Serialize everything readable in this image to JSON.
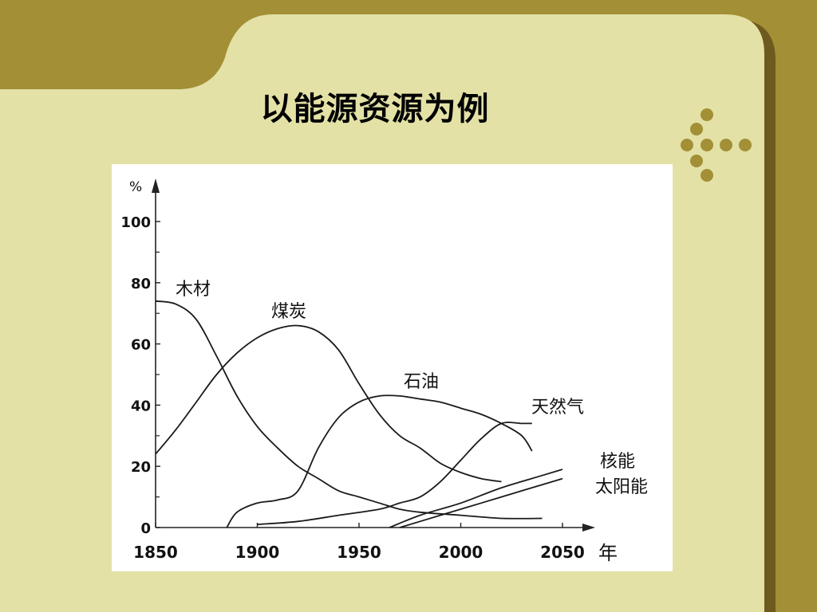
{
  "slide": {
    "title": "以能源资源为例",
    "colors": {
      "background": "#a38f35",
      "content": "#e3e1a6",
      "shadow": "#6e5a1e",
      "dots": "#a38f35"
    }
  },
  "chart_data": {
    "type": "line",
    "title": "",
    "xlabel": "年",
    "ylabel": "%",
    "xlim": [
      1850,
      2050
    ],
    "ylim": [
      0,
      100
    ],
    "x_ticks": [
      "1850",
      "1900",
      "1950",
      "2000",
      "2050"
    ],
    "y_ticks": [
      "0",
      "20",
      "40",
      "60",
      "80",
      "100"
    ],
    "series": [
      {
        "name": "木材",
        "x": [
          1850,
          1860,
          1870,
          1880,
          1890,
          1900,
          1910,
          1920,
          1930,
          1940,
          1950,
          1960,
          1970,
          1980,
          2000,
          2020,
          2040
        ],
        "y": [
          74,
          73,
          68,
          56,
          43,
          33,
          26,
          20,
          16,
          12,
          10,
          8,
          6,
          5,
          4,
          3,
          3
        ]
      },
      {
        "name": "煤炭",
        "x": [
          1850,
          1860,
          1870,
          1880,
          1890,
          1900,
          1910,
          1920,
          1930,
          1940,
          1950,
          1960,
          1970,
          1980,
          1990,
          2000,
          2010,
          2020
        ],
        "y": [
          24,
          32,
          41,
          50,
          57,
          62,
          65,
          66,
          64,
          58,
          47,
          37,
          30,
          26,
          21,
          18,
          16,
          15
        ]
      },
      {
        "name": "石油",
        "x": [
          1885,
          1890,
          1900,
          1910,
          1920,
          1930,
          1940,
          1950,
          1960,
          1970,
          1980,
          1990,
          2000,
          2010,
          2020,
          2030,
          2035
        ],
        "y": [
          0,
          5,
          8,
          9,
          12,
          26,
          36,
          41,
          43,
          43,
          42,
          41,
          39,
          37,
          34,
          30,
          25
        ]
      },
      {
        "name": "天然气",
        "x": [
          1900,
          1920,
          1940,
          1960,
          1970,
          1980,
          1990,
          2000,
          2010,
          2020,
          2030,
          2035
        ],
        "y": [
          1,
          2,
          4,
          6,
          8,
          10,
          15,
          22,
          29,
          34,
          34,
          34
        ]
      },
      {
        "name": "核能",
        "x": [
          1965,
          1980,
          2000,
          2020,
          2040,
          2050
        ],
        "y": [
          0,
          4,
          8,
          13,
          17,
          19
        ]
      },
      {
        "name": "太阳能",
        "x": [
          1970,
          1990,
          2010,
          2030,
          2050
        ],
        "y": [
          0,
          4,
          8,
          12,
          16
        ]
      }
    ]
  }
}
